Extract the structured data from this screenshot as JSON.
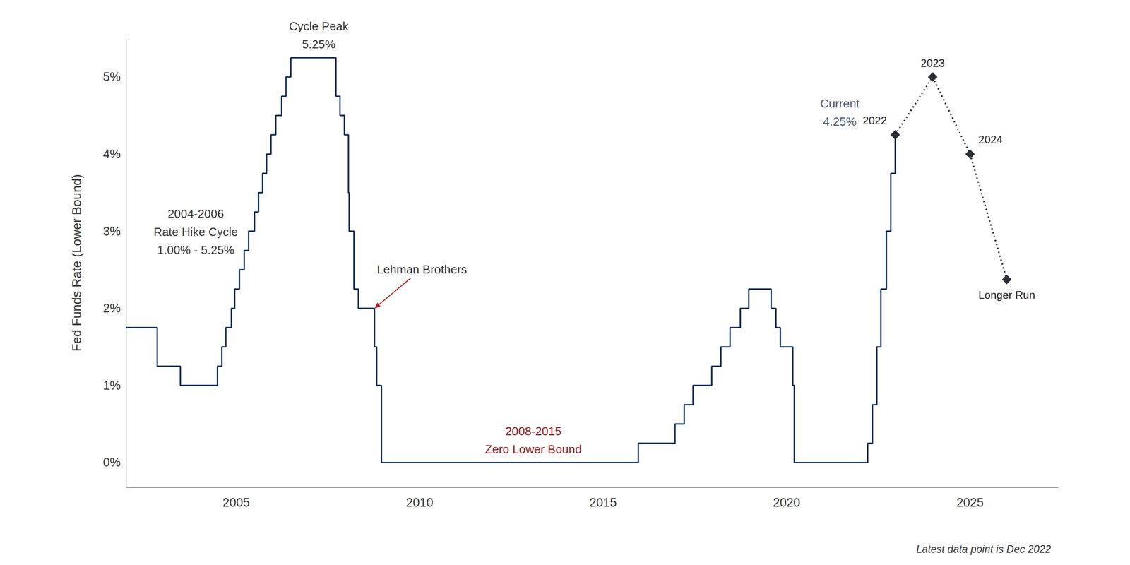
{
  "chart_data": {
    "type": "line",
    "y_label": "Fed Funds Rate (Lower Bound)",
    "xlim": [
      2002,
      2027.4
    ],
    "xticks": [
      2005,
      2010,
      2015,
      2020,
      2025
    ],
    "ylim": [
      -0.32,
      5.5
    ],
    "yticks": [
      {
        "value": 0,
        "label": "0%"
      },
      {
        "value": 1,
        "label": "1%"
      },
      {
        "value": 2,
        "label": "2%"
      },
      {
        "value": 3,
        "label": "3%"
      },
      {
        "value": 4,
        "label": "4%"
      },
      {
        "value": 5,
        "label": "5%"
      }
    ],
    "grid": false,
    "series": [
      {
        "type": "step",
        "line_style": "solid",
        "color": "#0d2b52",
        "x": [
          2002.0,
          2002.85,
          2003.48,
          2004.49,
          2004.61,
          2004.72,
          2004.87,
          2004.96,
          2005.09,
          2005.22,
          2005.34,
          2005.5,
          2005.61,
          2005.72,
          2005.83,
          2005.95,
          2006.08,
          2006.24,
          2006.36,
          2006.49,
          2007.72,
          2007.83,
          2007.95,
          2008.06,
          2008.08,
          2008.21,
          2008.33,
          2008.77,
          2008.83,
          2008.96,
          2015.96,
          2016.96,
          2017.21,
          2017.45,
          2017.96,
          2018.21,
          2018.46,
          2018.74,
          2018.97,
          2019.58,
          2019.71,
          2019.83,
          2020.17,
          2020.21,
          2022.21,
          2022.34,
          2022.46,
          2022.57,
          2022.72,
          2022.84,
          2022.96
        ],
        "values": [
          1.75,
          1.25,
          1.0,
          1.25,
          1.5,
          1.75,
          2.0,
          2.25,
          2.5,
          2.75,
          3.0,
          3.25,
          3.5,
          3.75,
          4.0,
          4.25,
          4.5,
          4.75,
          5.0,
          5.25,
          4.75,
          4.5,
          4.25,
          3.5,
          3.0,
          2.25,
          2.0,
          1.5,
          1.0,
          0.0,
          0.25,
          0.5,
          0.75,
          1.0,
          1.25,
          1.5,
          1.75,
          2.0,
          2.25,
          2.0,
          1.75,
          1.5,
          1.0,
          0.0,
          0.25,
          0.75,
          1.5,
          2.25,
          3.0,
          3.75,
          4.25
        ]
      },
      {
        "type": "line",
        "line_style": "dotted",
        "marker": "diamond",
        "color": "#2b2f36",
        "x": [
          2022.96,
          2023.98,
          2025.0,
          2026.0
        ],
        "values": [
          4.25,
          5.0,
          4.0,
          2.375
        ],
        "point_labels": [
          "2022",
          "2023",
          "2024",
          "Longer Run"
        ]
      }
    ],
    "annotations": [
      {
        "text": "Cycle Peak\n5.25%",
        "x": 2007.25,
        "y": 5.54
      },
      {
        "text": "2004-2006\nRate Hike Cycle\n1.00% - 5.25%",
        "x": 2003.9,
        "y": 2.99
      },
      {
        "text": "Lehman Brothers",
        "x": 2008.77,
        "y": 2.0,
        "marker": "arrow",
        "color": "#a51c1c"
      },
      {
        "text": "2008-2015\nZero Lower Bound",
        "x": 2013.1,
        "y": 0.29,
        "color": "#8b1c24"
      },
      {
        "text": "Current\n4.25%",
        "x": 2021.45,
        "y": 4.54,
        "color": "#4a5a6e"
      }
    ],
    "note": "Latest data point is Dec 2022"
  }
}
